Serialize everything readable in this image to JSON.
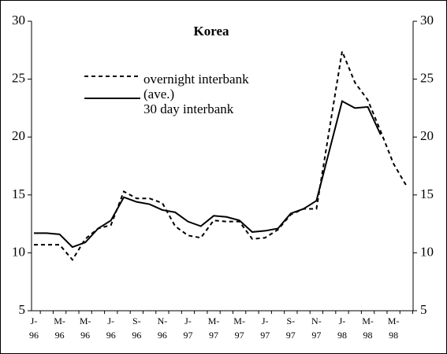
{
  "chart_data": {
    "type": "line",
    "title": "Korea",
    "categories": [
      "J-\n96",
      null,
      "M-\n96",
      null,
      "M-\n96",
      null,
      "J-\n96",
      null,
      "S-\n96",
      null,
      "N-\n96",
      null,
      "J-\n97",
      null,
      "M-\n97",
      null,
      "M-\n97",
      null,
      "J-\n97",
      null,
      "S-\n97",
      null,
      "N-\n97",
      null,
      "J-\n98",
      null,
      "M-\n98",
      null,
      "M-\n98",
      null
    ],
    "series": [
      {
        "name": "overnight interbank\n(ave.)",
        "color": "#000000",
        "dash": true,
        "values": [
          10.7,
          10.7,
          10.7,
          9.4,
          11.2,
          12.1,
          12.4,
          15.3,
          14.7,
          14.7,
          14.3,
          12.3,
          11.5,
          11.3,
          12.8,
          12.7,
          12.7,
          11.2,
          11.3,
          12.0,
          13.3,
          13.8,
          13.8,
          20.6,
          27.4,
          24.7,
          23.2,
          20.5,
          17.7,
          15.8
        ]
      },
      {
        "name": "30 day interbank",
        "color": "#000000",
        "dash": false,
        "values": [
          11.7,
          11.7,
          11.6,
          10.5,
          10.9,
          12.1,
          12.8,
          14.8,
          14.4,
          14.2,
          13.7,
          13.5,
          12.7,
          12.3,
          13.2,
          13.1,
          12.8,
          11.8,
          11.9,
          12.1,
          13.4,
          13.8,
          14.5,
          18.8,
          23.1,
          22.5,
          22.6,
          20.2,
          null,
          null
        ]
      }
    ],
    "ylim": [
      5,
      30
    ],
    "yticks": [
      5,
      10,
      15,
      20,
      25,
      30
    ],
    "y2lim": [
      5,
      30
    ],
    "y2ticks": [
      5,
      10,
      15,
      20,
      25,
      30
    ]
  }
}
